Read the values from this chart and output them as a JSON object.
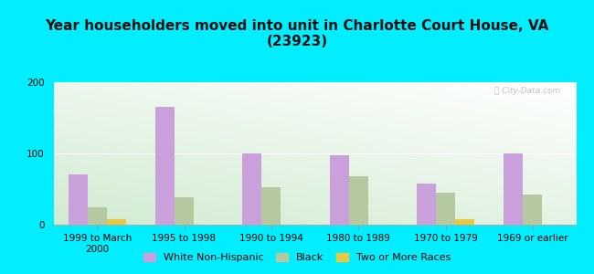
{
  "title": "Year householders moved into unit in Charlotte Court House, VA\n(23923)",
  "categories": [
    "1999 to March\n2000",
    "1995 to 1998",
    "1990 to 1994",
    "1980 to 1989",
    "1970 to 1979",
    "1969 or earlier"
  ],
  "series": {
    "White Non-Hispanic": [
      70,
      165,
      100,
      98,
      58,
      100
    ],
    "Black": [
      25,
      38,
      52,
      68,
      45,
      42
    ],
    "Two or More Races": [
      8,
      0,
      0,
      0,
      8,
      0
    ]
  },
  "colors": {
    "White Non-Hispanic": "#c9a0dc",
    "Black": "#b5c9a0",
    "Two or More Races": "#e8c840"
  },
  "ylim": [
    0,
    200
  ],
  "yticks": [
    0,
    100,
    200
  ],
  "background_color": "#00eeff",
  "bar_width": 0.22,
  "title_fontsize": 11,
  "legend_fontsize": 8,
  "tick_fontsize": 7.5,
  "watermark": "Ⓢ City-Data.com"
}
